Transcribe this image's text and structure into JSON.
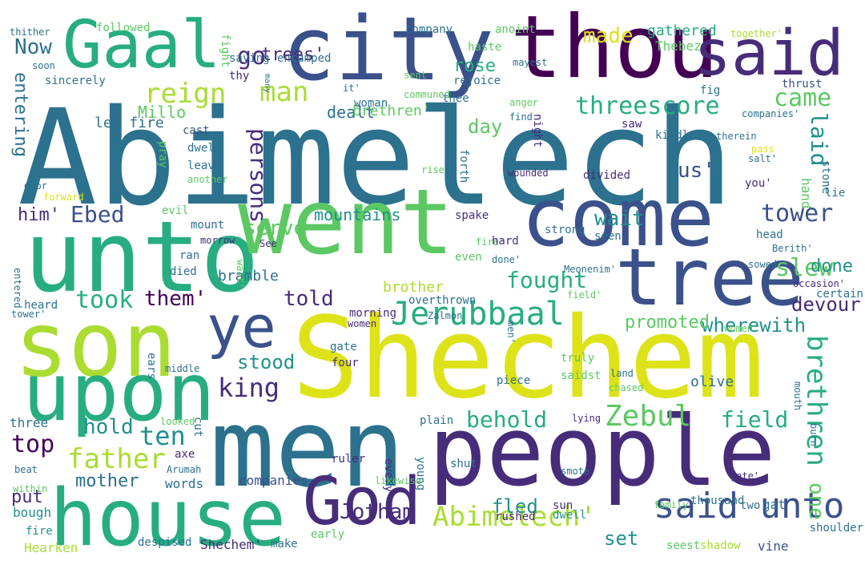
{
  "palette": {
    "background": "#ffffff",
    "p0": "#440154",
    "p1": "#472c7a",
    "p2": "#3b518b",
    "p3": "#2c718e",
    "p4": "#21908d",
    "p5": "#27ad81",
    "p6": "#5cc863",
    "p7": "#aadc32",
    "p8": "#dde318",
    "p9": "#fde725"
  },
  "words": [
    {
      "text": "Abimelech",
      "color": "#2c718e"
    },
    {
      "text": "Shechem",
      "color": "#dde318"
    },
    {
      "text": "unto",
      "color": "#27ad81"
    },
    {
      "text": "people",
      "color": "#472c7a"
    },
    {
      "text": "men",
      "color": "#2c718e"
    },
    {
      "text": "city",
      "color": "#3b518b"
    },
    {
      "text": "thou",
      "color": "#440154"
    },
    {
      "text": "went",
      "color": "#5cc863"
    },
    {
      "text": "come",
      "color": "#3b518b"
    },
    {
      "text": "son",
      "color": "#aadc32"
    },
    {
      "text": "upon",
      "color": "#27ad81"
    },
    {
      "text": "house",
      "color": "#27ad81"
    },
    {
      "text": "tree",
      "color": "#3b518b"
    },
    {
      "text": "said",
      "color": "#472c7a"
    },
    {
      "text": "Gaal",
      "color": "#27ad81"
    },
    {
      "text": "God",
      "color": "#472c7a"
    },
    {
      "text": "ye",
      "color": "#3b518b"
    },
    {
      "text": "said unto",
      "color": "#3b518b"
    },
    {
      "text": "Jerubbaal",
      "color": "#27ad81"
    },
    {
      "text": "Abimelech'",
      "color": "#aadc32"
    },
    {
      "text": "Zebul",
      "color": "#5cc863"
    },
    {
      "text": "brethren",
      "color": "#27ad81"
    },
    {
      "text": "reign",
      "color": "#aadc32"
    },
    {
      "text": "man",
      "color": "#aadc32"
    },
    {
      "text": "persons",
      "color": "#472c7a"
    },
    {
      "text": "threescore",
      "color": "#27ad81"
    },
    {
      "text": "came",
      "color": "#5cc863"
    },
    {
      "text": "tower",
      "color": "#3b518b"
    },
    {
      "text": "slew",
      "color": "#5cc863"
    },
    {
      "text": "laid",
      "color": "#21908d"
    },
    {
      "text": "made",
      "color": "#dde318"
    },
    {
      "text": "go",
      "color": "#472c7a"
    },
    {
      "text": "trees'",
      "color": "#472c7a"
    },
    {
      "text": "Now",
      "color": "#2c718e"
    },
    {
      "text": "rose",
      "color": "#27ad81"
    },
    {
      "text": "gathered",
      "color": "#27ad81"
    },
    {
      "text": "Thebez",
      "color": "#5cc863"
    },
    {
      "text": "us'",
      "color": "#3b518b"
    },
    {
      "text": "fought",
      "color": "#27ad81"
    },
    {
      "text": "day",
      "color": "#5cc863"
    },
    {
      "text": "took",
      "color": "#27ad81"
    },
    {
      "text": "them'",
      "color": "#440154"
    },
    {
      "text": "Ebed",
      "color": "#3b518b"
    },
    {
      "text": "serve",
      "color": "#5cc863"
    },
    {
      "text": "mountains",
      "color": "#21908d"
    },
    {
      "text": "told",
      "color": "#472c7a"
    },
    {
      "text": "behold",
      "color": "#27ad81"
    },
    {
      "text": "father",
      "color": "#aadc32"
    },
    {
      "text": "ten",
      "color": "#21908d"
    },
    {
      "text": "king",
      "color": "#472c7a"
    },
    {
      "text": "stood",
      "color": "#21908d"
    },
    {
      "text": "top",
      "color": "#440154"
    },
    {
      "text": "hold",
      "color": "#21908d"
    },
    {
      "text": "mother",
      "color": "#2c718e"
    },
    {
      "text": "Jotham",
      "color": "#472c7a"
    },
    {
      "text": "wait",
      "color": "#21908d"
    },
    {
      "text": "fled",
      "color": "#21908d"
    },
    {
      "text": "set",
      "color": "#21908d"
    },
    {
      "text": "field",
      "color": "#27ad81"
    },
    {
      "text": "one",
      "color": "#5cc863"
    },
    {
      "text": "wherewith",
      "color": "#21908d"
    },
    {
      "text": "devour",
      "color": "#472c7a"
    },
    {
      "text": "done",
      "color": "#21908d"
    },
    {
      "text": "promoted",
      "color": "#5cc863"
    },
    {
      "text": "Millo",
      "color": "#5cc863"
    },
    {
      "text": "entering",
      "color": "#2c718e"
    },
    {
      "text": "let fire",
      "color": "#2c718e"
    },
    {
      "text": "dealt",
      "color": "#2c718e"
    },
    {
      "text": "brethren'",
      "color": "#5cc863"
    },
    {
      "text": "brother",
      "color": "#aadc32"
    },
    {
      "text": "bramble",
      "color": "#2c718e"
    },
    {
      "text": "him'",
      "color": "#472c7a"
    },
    {
      "text": "olive",
      "color": "#2c718e"
    },
    {
      "text": "words",
      "color": "#2c718e"
    },
    {
      "text": "companies",
      "color": "#3b518b"
    },
    {
      "text": "put",
      "color": "#472c7a"
    },
    {
      "text": "three",
      "color": "#2c718e"
    },
    {
      "text": "Hearken",
      "color": "#aadc32"
    },
    {
      "text": "bough",
      "color": "#21908d"
    },
    {
      "text": "fire",
      "color": "#21908d"
    },
    {
      "text": "Shechem'",
      "color": "#472c7a"
    },
    {
      "text": "despised",
      "color": "#2c718e"
    },
    {
      "text": "make",
      "color": "#2c718e"
    },
    {
      "text": "early",
      "color": "#5cc863"
    },
    {
      "text": "rushed",
      "color": "#472c7a"
    },
    {
      "text": "dwell",
      "color": "#21908d"
    },
    {
      "text": "sun",
      "color": "#472c7a"
    },
    {
      "text": "thousand",
      "color": "#2c718e"
    },
    {
      "text": "shoulder",
      "color": "#2c718e"
    },
    {
      "text": "vine",
      "color": "#3b518b"
    },
    {
      "text": "gat",
      "color": "#2c718e"
    },
    {
      "text": "two",
      "color": "#2c718e"
    },
    {
      "text": "seest",
      "color": "#5cc863"
    },
    {
      "text": "shadow",
      "color": "#aadc32"
    },
    {
      "text": "family",
      "color": "#5cc863"
    },
    {
      "text": "followed",
      "color": "#5cc863"
    },
    {
      "text": "thither",
      "color": "#2c718e"
    },
    {
      "text": "soon",
      "color": "#2c718e"
    },
    {
      "text": "company",
      "color": "#2c718e"
    },
    {
      "text": "anoint",
      "color": "#5cc863"
    },
    {
      "text": "haste",
      "color": "#5cc863"
    },
    {
      "text": "together'",
      "color": "#aadc32"
    },
    {
      "text": "fight",
      "color": "#5cc863"
    },
    {
      "text": "saying",
      "color": "#2c718e"
    },
    {
      "text": "encamped",
      "color": "#2c718e"
    },
    {
      "text": "mayest",
      "color": "#2c718e"
    },
    {
      "text": "thy",
      "color": "#472c7a"
    },
    {
      "text": "sent",
      "color": "#5cc863"
    },
    {
      "text": "rejoice",
      "color": "#2c718e"
    },
    {
      "text": "sincerely",
      "color": "#2c718e"
    },
    {
      "text": "it'",
      "color": "#2c718e"
    },
    {
      "text": "woman",
      "color": "#2c718e"
    },
    {
      "text": "thee",
      "color": "#2c718e"
    },
    {
      "text": "anger",
      "color": "#5cc863"
    },
    {
      "text": "find",
      "color": "#2c718e"
    },
    {
      "text": "fig",
      "color": "#2c718e"
    },
    {
      "text": "thrust",
      "color": "#3b518b"
    },
    {
      "text": "communed",
      "color": "#5cc863"
    },
    {
      "text": "companies'",
      "color": "#2c718e"
    },
    {
      "text": "many",
      "color": "#2c718e"
    },
    {
      "text": "cast",
      "color": "#3b518b"
    },
    {
      "text": "pray",
      "color": "#5cc863"
    },
    {
      "text": "dwelt",
      "color": "#2c718e"
    },
    {
      "text": "night",
      "color": "#472c7a"
    },
    {
      "text": "forth",
      "color": "#2c718e"
    },
    {
      "text": "saw",
      "color": "#472c7a"
    },
    {
      "text": "kindled'",
      "color": "#2c718e"
    },
    {
      "text": "therein",
      "color": "#2c718e"
    },
    {
      "text": "pass",
      "color": "#dde318"
    },
    {
      "text": "salt'",
      "color": "#2c718e"
    },
    {
      "text": "stone",
      "color": "#2c718e"
    },
    {
      "text": "hast",
      "color": "#2c718e"
    },
    {
      "text": "you'",
      "color": "#472c7a"
    },
    {
      "text": "hand",
      "color": "#5cc863"
    },
    {
      "text": "lie",
      "color": "#2c718e"
    },
    {
      "text": "door",
      "color": "#2c718e"
    },
    {
      "text": "another",
      "color": "#5cc863"
    },
    {
      "text": "leave",
      "color": "#2c718e"
    },
    {
      "text": "rise",
      "color": "#5cc863"
    },
    {
      "text": "wounded",
      "color": "#472c7a"
    },
    {
      "text": "divided",
      "color": "#472c7a"
    },
    {
      "text": "forward",
      "color": "#dde318"
    },
    {
      "text": "evil",
      "color": "#5cc863"
    },
    {
      "text": "mount",
      "color": "#2c718e"
    },
    {
      "text": "morrow",
      "color": "#472c7a"
    },
    {
      "text": "spake",
      "color": "#472c7a"
    },
    {
      "text": "fire'",
      "color": "#5cc863"
    },
    {
      "text": "strong",
      "color": "#2c718e"
    },
    {
      "text": "head",
      "color": "#2c718e"
    },
    {
      "text": "Berith'",
      "color": "#2c718e"
    },
    {
      "text": "See",
      "color": "#472c7a"
    },
    {
      "text": "seen",
      "color": "#2c718e"
    },
    {
      "text": "overthrown",
      "color": "#2c718e"
    },
    {
      "text": "ran",
      "color": "#2c718e"
    },
    {
      "text": "hard",
      "color": "#472c7a"
    },
    {
      "text": "even",
      "color": "#5cc863"
    },
    {
      "text": "died",
      "color": "#2c718e"
    },
    {
      "text": "wait'",
      "color": "#5cc863"
    },
    {
      "text": "done'",
      "color": "#2c718e"
    },
    {
      "text": "sowed",
      "color": "#2c718e"
    },
    {
      "text": "entered",
      "color": "#2c718e"
    },
    {
      "text": "Meonenim'",
      "color": "#2c718e"
    },
    {
      "text": "occasion'",
      "color": "#472c7a"
    },
    {
      "text": "certain",
      "color": "#2c718e"
    },
    {
      "text": "heard",
      "color": "#2c718e"
    },
    {
      "text": "tower'",
      "color": "#2c718e"
    },
    {
      "text": "morning",
      "color": "#472c7a"
    },
    {
      "text": "women",
      "color": "#472c7a"
    },
    {
      "text": "field'",
      "color": "#5cc863"
    },
    {
      "text": "Zalmon",
      "color": "#2c718e"
    },
    {
      "text": "ears",
      "color": "#2c718e"
    },
    {
      "text": "women'",
      "color": "#5cc863"
    },
    {
      "text": "men'",
      "color": "#2c718e"
    },
    {
      "text": "gate",
      "color": "#2c718e"
    },
    {
      "text": "four",
      "color": "#472c7a"
    },
    {
      "text": "truly",
      "color": "#5cc863"
    },
    {
      "text": "saidst",
      "color": "#5cc863"
    },
    {
      "text": "land",
      "color": "#2c718e"
    },
    {
      "text": "chased",
      "color": "#5cc863"
    },
    {
      "text": "mouth",
      "color": "#2c718e"
    },
    {
      "text": "middle",
      "color": "#2c718e"
    },
    {
      "text": "piece",
      "color": "#2c718e"
    },
    {
      "text": "lying",
      "color": "#472c7a"
    },
    {
      "text": "burn",
      "color": "#2c718e"
    },
    {
      "text": "looked",
      "color": "#5cc863"
    },
    {
      "text": "cut",
      "color": "#2c718e"
    },
    {
      "text": "plain",
      "color": "#2c718e"
    },
    {
      "text": "Arumah",
      "color": "#2c718e"
    },
    {
      "text": "axe",
      "color": "#472c7a"
    },
    {
      "text": "ruler",
      "color": "#472c7a"
    },
    {
      "text": "every",
      "color": "#472c7a"
    },
    {
      "text": "shut",
      "color": "#2c718e"
    },
    {
      "text": "smote",
      "color": "#2c718e"
    },
    {
      "text": "gate'",
      "color": "#472c7a"
    },
    {
      "text": "beat",
      "color": "#2c718e"
    },
    {
      "text": "within",
      "color": "#5cc863"
    },
    {
      "text": "likewise",
      "color": "#5cc863"
    },
    {
      "text": "young",
      "color": "#2c718e"
    }
  ]
}
